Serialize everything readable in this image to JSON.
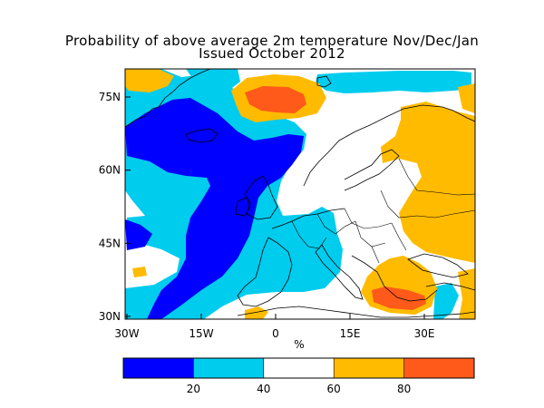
{
  "title": {
    "line1": "Probability of above average 2m temperature Nov/Dec/Jan",
    "line2": "Issued October 2012"
  },
  "map": {
    "lat_ticks": [
      "75N",
      "60N",
      "45N",
      "30N"
    ],
    "lon_ticks": [
      "30W",
      "15W",
      "0",
      "15E",
      "30E"
    ],
    "unit_label": "%"
  },
  "legend": {
    "ticks": [
      "20",
      "40",
      "60",
      "80"
    ],
    "bins": [
      {
        "range": "0-20",
        "color": "#0000ff"
      },
      {
        "range": "20-40",
        "color": "#00ccee"
      },
      {
        "range": "40-60",
        "color": "#ffffff"
      },
      {
        "range": "60-80",
        "color": "#ffbb00"
      },
      {
        "range": "80-100",
        "color": "#ff5a1a"
      }
    ]
  },
  "colors": {
    "below_20": "#0000ff",
    "20_40": "#00ccee",
    "40_60": "#ffffff",
    "60_80": "#ffbb00",
    "above_80": "#ff5a1a",
    "coastline": "#000000"
  }
}
